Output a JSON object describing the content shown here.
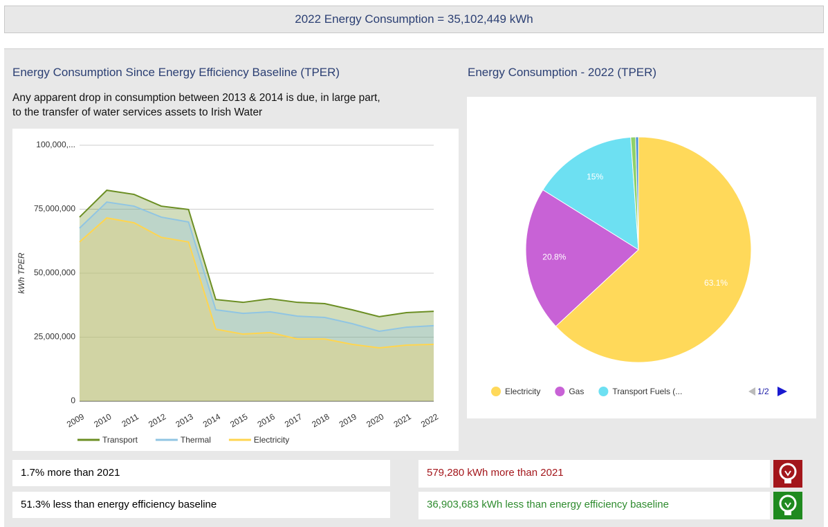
{
  "header": {
    "title": "2022 Energy Consumption = 35,102,449 kWh"
  },
  "left_panel": {
    "title": "Energy Consumption Since Energy Efficiency Baseline (TPER)",
    "note": [
      "Any apparent drop in consumption between 2013 & 2014 is due, in large part,",
      "to the transfer of water services assets to Irish Water"
    ]
  },
  "right_panel": {
    "title": "Energy Consumption - 2022 (TPER)"
  },
  "chart_data": [
    {
      "type": "stacked_area",
      "y_label": "kWh TPER",
      "x": [
        "2009",
        "2010",
        "2011",
        "2012",
        "2013",
        "2014",
        "2015",
        "2016",
        "2017",
        "2018",
        "2019",
        "2020",
        "2021",
        "2022"
      ],
      "series": [
        {
          "name": "Transport",
          "color": "#6b8e23",
          "values": [
            4300000,
            4600000,
            4600000,
            4300000,
            4900000,
            4000000,
            4300000,
            5100000,
            5400000,
            5400000,
            5400000,
            5700000,
            5700000,
            5600000
          ]
        },
        {
          "name": "Thermal",
          "color": "#90c5e3",
          "values": [
            5400000,
            6200000,
            6500000,
            7900000,
            7800000,
            7600000,
            8100000,
            8100000,
            8900000,
            8400000,
            8100000,
            6500000,
            7000000,
            7300000
          ]
        },
        {
          "name": "Electricity",
          "color": "#ffd54f",
          "values": [
            62200000,
            71600000,
            69700000,
            64000000,
            62200000,
            28100000,
            26200000,
            26800000,
            24300000,
            24300000,
            22200000,
            20800000,
            21900000,
            22200000
          ]
        }
      ],
      "ylim": [
        0,
        100000000
      ],
      "yticks": [
        0,
        {
          "value": 25000000,
          "label": "25,000,000"
        },
        {
          "value": 50000000,
          "label": "50,000,000"
        },
        {
          "value": 75000000,
          "label": "75,000,000"
        },
        {
          "value": 100000000,
          "label": "100,000,..."
        }
      ],
      "grid": true
    },
    {
      "type": "pie",
      "categories": [
        "Electricity",
        "Gas",
        "Transport Fuels (...",
        null,
        null
      ],
      "values": [
        63.1,
        20.8,
        15,
        0.7,
        0.4
      ],
      "value_labels": [
        "63.1%",
        "20.8%",
        "15%",
        null,
        null
      ],
      "colors": [
        "#ffd95a",
        "#c862d6",
        "#6de0f2",
        "#8fd16a",
        "#4a90d9"
      ],
      "legend_page": "1/2"
    }
  ],
  "stats": {
    "left": [
      "1.7% more than 2021",
      "51.3% less than energy efficiency baseline"
    ],
    "right": [
      "579,280 kWh more than 2021",
      "36,903,683 kWh less than energy efficiency baseline"
    ]
  }
}
